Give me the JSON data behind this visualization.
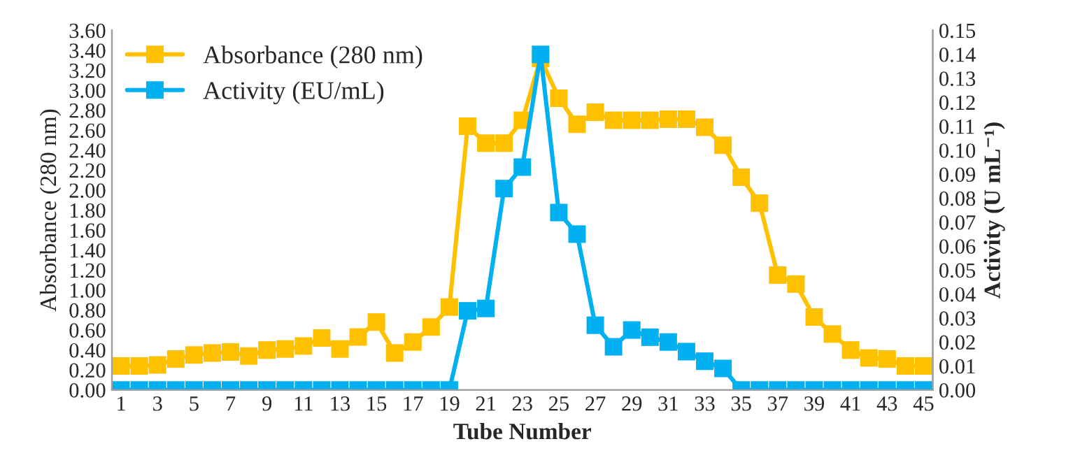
{
  "chart_data": {
    "type": "line",
    "xlabel": "Tube Number",
    "ylabel": "Absorbance (280 nm)",
    "y2label": "Activity (U mL⁻¹)",
    "categories": [
      "1",
      null,
      "3",
      null,
      "5",
      null,
      "7",
      null,
      "9",
      null,
      "11",
      null,
      "13",
      null,
      "15",
      null,
      "17",
      null,
      "19",
      null,
      "21",
      null,
      "23",
      null,
      "25",
      null,
      "27",
      null,
      "29",
      null,
      "31",
      null,
      "33",
      null,
      "35",
      null,
      "37",
      null,
      "39",
      null,
      "41",
      null,
      "43",
      null,
      "45"
    ],
    "series": [
      {
        "name": "Absorbance (280 nm)",
        "color": "#ffc000",
        "values": [
          0.24,
          0.24,
          0.25,
          0.31,
          0.35,
          0.37,
          0.38,
          0.34,
          0.4,
          0.41,
          0.44,
          0.52,
          0.41,
          0.53,
          0.68,
          0.37,
          0.48,
          0.63,
          0.83,
          2.64,
          2.47,
          2.47,
          2.7,
          3.32,
          2.92,
          2.66,
          2.78,
          2.7,
          2.7,
          2.7,
          2.71,
          2.71,
          2.63,
          2.45,
          2.13,
          1.87,
          1.15,
          1.06,
          0.73,
          0.56,
          0.4,
          0.32,
          0.31,
          0.24,
          0.24
        ]
      },
      {
        "name": "Activity (EU/mL)",
        "color": "#00b0f0",
        "axis": "y2",
        "values": [
          0,
          0,
          0,
          0,
          0,
          0,
          0,
          0,
          0,
          0,
          0,
          0,
          0,
          0,
          0,
          0,
          0,
          0,
          0,
          0.033,
          0.034,
          0.084,
          0.093,
          0.14,
          0.074,
          0.065,
          0.027,
          0.018,
          0.025,
          0.022,
          0.02,
          0.016,
          0.012,
          0.009,
          0,
          0,
          0,
          0,
          0,
          0,
          0,
          0,
          0,
          0,
          0
        ]
      }
    ],
    "ylim": [
      0,
      3.6
    ],
    "yticks": [
      {
        "value": 0,
        "label": "0.00"
      },
      {
        "value": 0.2,
        "label": "0.20"
      },
      {
        "value": 0.4,
        "label": "0.40"
      },
      {
        "value": 0.6,
        "label": "0.60"
      },
      {
        "value": 0.8,
        "label": "0.80"
      },
      {
        "value": 1.0,
        "label": "1.00"
      },
      {
        "value": 1.2,
        "label": "1.20"
      },
      {
        "value": 1.4,
        "label": "1.40"
      },
      {
        "value": 1.6,
        "label": "1.60"
      },
      {
        "value": 1.8,
        "label": "1.80"
      },
      {
        "value": 2.0,
        "label": "2.00"
      },
      {
        "value": 2.2,
        "label": "2.20"
      },
      {
        "value": 2.4,
        "label": "2.40"
      },
      {
        "value": 2.6,
        "label": "2.60"
      },
      {
        "value": 2.8,
        "label": "2.80"
      },
      {
        "value": 3.0,
        "label": "3.00"
      },
      {
        "value": 3.2,
        "label": "3.20"
      },
      {
        "value": 3.4,
        "label": "3.40"
      },
      {
        "value": 3.6,
        "label": "3.60"
      }
    ],
    "y2lim": [
      0,
      0.15
    ],
    "y2ticks": [
      {
        "value": 0,
        "label": "0.00"
      },
      {
        "value": 0.01,
        "label": "0.01"
      },
      {
        "value": 0.02,
        "label": "0.02"
      },
      {
        "value": 0.03,
        "label": "0.03"
      },
      {
        "value": 0.04,
        "label": "0.04"
      },
      {
        "value": 0.05,
        "label": "0.05"
      },
      {
        "value": 0.06,
        "label": "0.06"
      },
      {
        "value": 0.07,
        "label": "0.07"
      },
      {
        "value": 0.08,
        "label": "0.08"
      },
      {
        "value": 0.09,
        "label": "0.09"
      },
      {
        "value": 0.1,
        "label": "0.10"
      },
      {
        "value": 0.11,
        "label": "0.11"
      },
      {
        "value": 0.12,
        "label": "0.12"
      },
      {
        "value": 0.13,
        "label": "0.13"
      },
      {
        "value": 0.14,
        "label": "0.14"
      },
      {
        "value": 0.15,
        "label": "0.15"
      }
    ],
    "marker": "square",
    "line_style": "solid",
    "legend": "top left",
    "grid": false
  }
}
